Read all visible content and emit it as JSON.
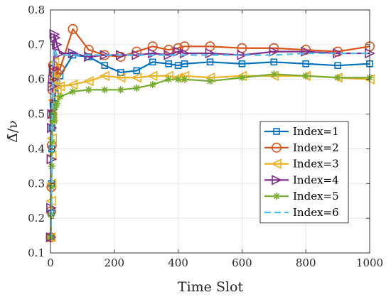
{
  "chart_data": {
    "type": "line",
    "xlabel": "Time Slot",
    "ylabel": "Δ̄/ν",
    "xlim": [
      0,
      1000
    ],
    "ylim": [
      0.1,
      0.8
    ],
    "xticks": [
      0,
      200,
      400,
      600,
      800,
      1000
    ],
    "yticks": [
      0.1,
      0.2,
      0.3,
      0.4,
      0.5,
      0.6,
      0.7,
      0.8
    ],
    "grid": true,
    "legend_position": "right-center",
    "series": [
      {
        "name": "Index=1",
        "color": "#0072BD",
        "marker": "square",
        "dash": false,
        "x": [
          1,
          2,
          3,
          4,
          5,
          6,
          8,
          10,
          12,
          15,
          20,
          30,
          70,
          120,
          170,
          220,
          270,
          320,
          370,
          400,
          420,
          500,
          600,
          700,
          800,
          900,
          1000
        ],
        "y": [
          0.145,
          0.215,
          0.3,
          0.4,
          0.46,
          0.5,
          0.53,
          0.52,
          0.53,
          0.56,
          0.59,
          0.61,
          0.67,
          0.665,
          0.64,
          0.62,
          0.625,
          0.65,
          0.645,
          0.64,
          0.645,
          0.65,
          0.645,
          0.65,
          0.645,
          0.64,
          0.645
        ]
      },
      {
        "name": "Index=2",
        "color": "#D95319",
        "marker": "circle",
        "dash": false,
        "x": [
          1,
          2,
          3,
          4,
          5,
          6,
          8,
          10,
          12,
          15,
          20,
          30,
          70,
          120,
          170,
          220,
          270,
          320,
          370,
          400,
          420,
          500,
          600,
          700,
          800,
          900,
          1000
        ],
        "y": [
          0.145,
          0.22,
          0.29,
          0.41,
          0.5,
          0.57,
          0.64,
          0.62,
          0.63,
          0.61,
          0.62,
          0.63,
          0.745,
          0.685,
          0.67,
          0.665,
          0.68,
          0.695,
          0.685,
          0.69,
          0.695,
          0.695,
          0.69,
          0.69,
          0.685,
          0.68,
          0.695
        ]
      },
      {
        "name": "Index=3",
        "color": "#EDB120",
        "marker": "triangle-left",
        "dash": false,
        "x": [
          1,
          2,
          3,
          4,
          5,
          6,
          8,
          10,
          12,
          15,
          20,
          30,
          70,
          120,
          170,
          220,
          270,
          320,
          370,
          400,
          420,
          500,
          600,
          700,
          800,
          900,
          1000
        ],
        "y": [
          0.145,
          0.25,
          0.3,
          0.38,
          0.43,
          0.49,
          0.54,
          0.6,
          0.65,
          0.6,
          0.57,
          0.58,
          0.585,
          0.595,
          0.61,
          0.605,
          0.605,
          0.61,
          0.61,
          0.605,
          0.61,
          0.605,
          0.61,
          0.61,
          0.61,
          0.605,
          0.6
        ]
      },
      {
        "name": "Index=4",
        "color": "#7E2F8E",
        "marker": "triangle-right",
        "dash": false,
        "x": [
          1,
          2,
          3,
          4,
          5,
          6,
          8,
          10,
          12,
          15,
          20,
          30,
          70,
          120,
          170,
          220,
          270,
          320,
          370,
          400,
          420,
          500,
          600,
          700,
          800,
          900,
          1000
        ],
        "y": [
          0.145,
          0.23,
          0.37,
          0.46,
          0.5,
          0.58,
          0.6,
          0.63,
          0.73,
          0.72,
          0.7,
          0.675,
          0.675,
          0.665,
          0.67,
          0.67,
          0.67,
          0.675,
          0.67,
          0.68,
          0.675,
          0.675,
          0.67,
          0.68,
          0.68,
          0.675,
          0.675
        ]
      },
      {
        "name": "Index=5",
        "color": "#77AC30",
        "marker": "star",
        "dash": false,
        "x": [
          1,
          2,
          3,
          4,
          5,
          6,
          8,
          10,
          12,
          15,
          20,
          30,
          70,
          120,
          170,
          220,
          270,
          320,
          370,
          400,
          420,
          500,
          600,
          700,
          800,
          900,
          1000
        ],
        "y": [
          0.145,
          0.21,
          0.29,
          0.35,
          0.42,
          0.48,
          0.5,
          0.49,
          0.48,
          0.52,
          0.53,
          0.55,
          0.565,
          0.57,
          0.57,
          0.57,
          0.575,
          0.585,
          0.6,
          0.6,
          0.6,
          0.595,
          0.605,
          0.615,
          0.61,
          0.605,
          0.605
        ]
      },
      {
        "name": "Index=6",
        "color": "#4DBEEE",
        "marker": "none",
        "dash": true,
        "x": [
          1,
          2,
          3,
          4,
          5,
          6,
          8,
          10,
          12,
          15,
          20,
          30,
          70,
          120,
          170,
          220,
          270,
          320,
          370,
          400,
          420,
          500,
          600,
          700,
          800,
          900,
          1000
        ],
        "y": [
          0.145,
          0.22,
          0.3,
          0.4,
          0.48,
          0.56,
          0.63,
          0.67,
          0.69,
          0.68,
          0.67,
          0.67,
          0.67,
          0.67,
          0.67,
          0.67,
          0.67,
          0.67,
          0.67,
          0.67,
          0.67,
          0.67,
          0.67,
          0.67,
          0.675,
          0.675,
          0.675
        ]
      }
    ]
  }
}
